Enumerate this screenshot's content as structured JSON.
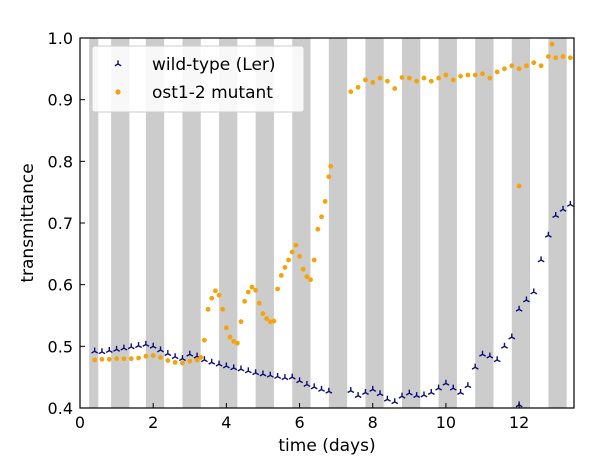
{
  "chart_data": {
    "type": "scatter",
    "xlabel": "time (days)",
    "ylabel": "transmittance",
    "xlim": [
      0,
      13.5
    ],
    "ylim": [
      0.4,
      1.0
    ],
    "x_ticks": [
      0,
      2,
      4,
      6,
      8,
      10,
      12
    ],
    "y_ticks": [
      0.4,
      0.5,
      0.6,
      0.7,
      0.8,
      0.9,
      1.0
    ],
    "x_tick_labels": [
      "0",
      "2",
      "4",
      "6",
      "8",
      "10",
      "12"
    ],
    "y_tick_labels": [
      "0.4",
      "0.5",
      "0.6",
      "0.7",
      "0.8",
      "0.9",
      "1.0"
    ],
    "grid": false,
    "legend": "top-left",
    "dark_periods": [
      [
        0.25,
        0.5
      ],
      [
        0.85,
        1.35
      ],
      [
        1.8,
        2.3
      ],
      [
        2.8,
        3.3
      ],
      [
        3.8,
        4.3
      ],
      [
        4.8,
        5.3
      ],
      [
        5.8,
        6.3
      ],
      [
        6.8,
        7.3
      ],
      [
        7.8,
        8.3
      ],
      [
        8.8,
        9.3
      ],
      [
        9.8,
        10.3
      ],
      [
        10.8,
        11.3
      ],
      [
        11.8,
        12.3
      ],
      [
        12.8,
        13.3
      ]
    ],
    "shade_color": "#cccccc",
    "series": [
      {
        "name": "wild-type (Ler)",
        "marker": "tri",
        "color": "#0d0d7a",
        "points": [
          [
            0.4,
            0.492
          ],
          [
            0.6,
            0.491
          ],
          [
            0.8,
            0.493
          ],
          [
            1.0,
            0.495
          ],
          [
            1.2,
            0.497
          ],
          [
            1.4,
            0.499
          ],
          [
            1.6,
            0.501
          ],
          [
            1.8,
            0.503
          ],
          [
            2.0,
            0.5
          ],
          [
            2.2,
            0.494
          ],
          [
            2.4,
            0.488
          ],
          [
            2.6,
            0.483
          ],
          [
            2.8,
            0.48
          ],
          [
            3.0,
            0.487
          ],
          [
            3.2,
            0.484
          ],
          [
            3.4,
            0.478
          ],
          [
            3.6,
            0.474
          ],
          [
            3.8,
            0.471
          ],
          [
            4.0,
            0.468
          ],
          [
            4.2,
            0.465
          ],
          [
            4.4,
            0.463
          ],
          [
            4.6,
            0.46
          ],
          [
            4.8,
            0.457
          ],
          [
            5.0,
            0.455
          ],
          [
            5.2,
            0.453
          ],
          [
            5.4,
            0.451
          ],
          [
            5.6,
            0.449
          ],
          [
            5.8,
            0.45
          ],
          [
            6.0,
            0.444
          ],
          [
            6.2,
            0.438
          ],
          [
            6.4,
            0.434
          ],
          [
            6.6,
            0.43
          ],
          [
            6.8,
            0.427
          ],
          [
            7.4,
            0.428
          ],
          [
            7.6,
            0.42
          ],
          [
            7.8,
            0.425
          ],
          [
            8.0,
            0.43
          ],
          [
            8.2,
            0.423
          ],
          [
            8.4,
            0.414
          ],
          [
            8.6,
            0.41
          ],
          [
            8.8,
            0.419
          ],
          [
            9.0,
            0.424
          ],
          [
            9.2,
            0.42
          ],
          [
            9.4,
            0.421
          ],
          [
            9.6,
            0.425
          ],
          [
            9.8,
            0.432
          ],
          [
            10.0,
            0.44
          ],
          [
            10.2,
            0.432
          ],
          [
            10.4,
            0.425
          ],
          [
            10.6,
            0.436
          ],
          [
            10.8,
            0.466
          ],
          [
            11.0,
            0.487
          ],
          [
            11.2,
            0.484
          ],
          [
            11.4,
            0.478
          ],
          [
            11.6,
            0.5
          ],
          [
            11.8,
            0.515
          ],
          [
            12.0,
            0.56
          ],
          [
            12.2,
            0.575
          ],
          [
            12.4,
            0.588
          ],
          [
            12.6,
            0.64
          ],
          [
            12.8,
            0.68
          ],
          [
            13.0,
            0.712
          ],
          [
            13.2,
            0.722
          ],
          [
            13.4,
            0.73
          ],
          [
            12.0,
            0.405
          ]
        ]
      },
      {
        "name": "ost1-2 mutant",
        "marker": "circle",
        "color": "#f5a30a",
        "points": [
          [
            0.4,
            0.478
          ],
          [
            0.6,
            0.479
          ],
          [
            0.8,
            0.479
          ],
          [
            1.0,
            0.48
          ],
          [
            1.2,
            0.48
          ],
          [
            1.4,
            0.48
          ],
          [
            1.6,
            0.481
          ],
          [
            1.8,
            0.484
          ],
          [
            2.0,
            0.485
          ],
          [
            2.2,
            0.482
          ],
          [
            2.4,
            0.477
          ],
          [
            2.6,
            0.474
          ],
          [
            2.8,
            0.473
          ],
          [
            3.0,
            0.476
          ],
          [
            3.2,
            0.478
          ],
          [
            3.3,
            0.482
          ],
          [
            3.4,
            0.51
          ],
          [
            3.5,
            0.56
          ],
          [
            3.6,
            0.578
          ],
          [
            3.7,
            0.59
          ],
          [
            3.8,
            0.583
          ],
          [
            3.9,
            0.56
          ],
          [
            4.0,
            0.53
          ],
          [
            4.1,
            0.515
          ],
          [
            4.2,
            0.508
          ],
          [
            4.3,
            0.505
          ],
          [
            4.4,
            0.54
          ],
          [
            4.5,
            0.573
          ],
          [
            4.6,
            0.588
          ],
          [
            4.7,
            0.596
          ],
          [
            4.8,
            0.591
          ],
          [
            4.9,
            0.57
          ],
          [
            5.0,
            0.553
          ],
          [
            5.1,
            0.545
          ],
          [
            5.2,
            0.54
          ],
          [
            5.3,
            0.541
          ],
          [
            5.4,
            0.593
          ],
          [
            5.5,
            0.615
          ],
          [
            5.6,
            0.628
          ],
          [
            5.7,
            0.64
          ],
          [
            5.8,
            0.653
          ],
          [
            5.9,
            0.664
          ],
          [
            6.0,
            0.646
          ],
          [
            6.1,
            0.625
          ],
          [
            6.2,
            0.613
          ],
          [
            6.3,
            0.608
          ],
          [
            6.4,
            0.64
          ],
          [
            6.5,
            0.69
          ],
          [
            6.6,
            0.71
          ],
          [
            6.7,
            0.735
          ],
          [
            6.8,
            0.775
          ],
          [
            6.85,
            0.792
          ],
          [
            7.4,
            0.913
          ],
          [
            7.6,
            0.92
          ],
          [
            7.8,
            0.932
          ],
          [
            8.0,
            0.928
          ],
          [
            8.2,
            0.935
          ],
          [
            8.4,
            0.93
          ],
          [
            8.6,
            0.918
          ],
          [
            8.8,
            0.936
          ],
          [
            9.0,
            0.935
          ],
          [
            9.2,
            0.93
          ],
          [
            9.4,
            0.935
          ],
          [
            9.6,
            0.93
          ],
          [
            9.8,
            0.935
          ],
          [
            10.0,
            0.94
          ],
          [
            10.2,
            0.932
          ],
          [
            10.4,
            0.938
          ],
          [
            10.6,
            0.94
          ],
          [
            10.8,
            0.94
          ],
          [
            11.0,
            0.942
          ],
          [
            11.2,
            0.935
          ],
          [
            11.4,
            0.945
          ],
          [
            11.6,
            0.95
          ],
          [
            11.8,
            0.955
          ],
          [
            12.0,
            0.95
          ],
          [
            12.2,
            0.955
          ],
          [
            12.4,
            0.96
          ],
          [
            12.6,
            0.955
          ],
          [
            12.8,
            0.97
          ],
          [
            13.0,
            0.968
          ],
          [
            13.2,
            0.97
          ],
          [
            13.4,
            0.968
          ],
          [
            12.0,
            0.76
          ],
          [
            12.9,
            0.99
          ]
        ]
      }
    ]
  }
}
